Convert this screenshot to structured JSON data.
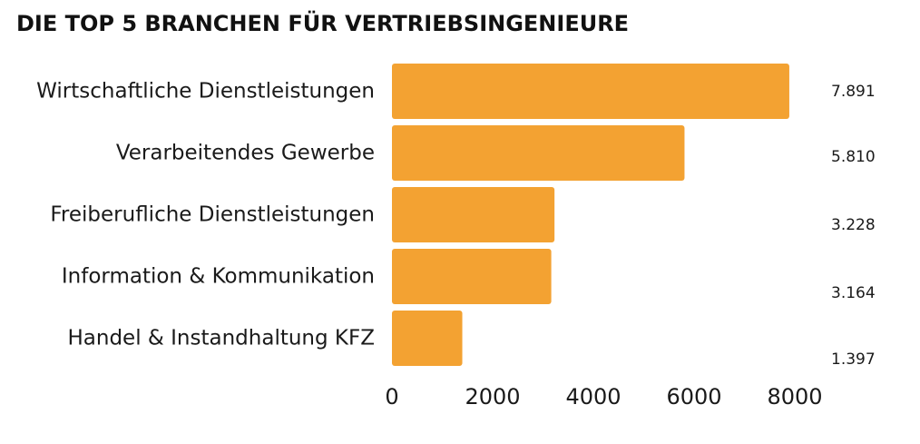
{
  "chart_data": {
    "type": "bar",
    "orientation": "horizontal",
    "title": "DIE TOP 5 BRANCHEN FÜR VERTRIEBSINGENIEURE",
    "categories": [
      "Wirtschaftliche Dienstleistungen",
      "Verarbeitendes Gewerbe",
      "Freiberufliche Dienstleistungen",
      "Information & Kommunikation",
      "Handel & Instandhaltung KFZ"
    ],
    "values": [
      7891,
      5810,
      3228,
      3164,
      1397
    ],
    "value_labels": [
      "7.891",
      "5.810",
      "3.228",
      "3.164",
      "1.397"
    ],
    "xlim": [
      0,
      8000
    ],
    "xticks": [
      0,
      2000,
      4000,
      6000,
      8000
    ],
    "xtick_labels": [
      "0",
      "2000",
      "4000",
      "6000",
      "8000"
    ],
    "bar_color": "#F3A232",
    "grid": false,
    "legend": "none"
  }
}
